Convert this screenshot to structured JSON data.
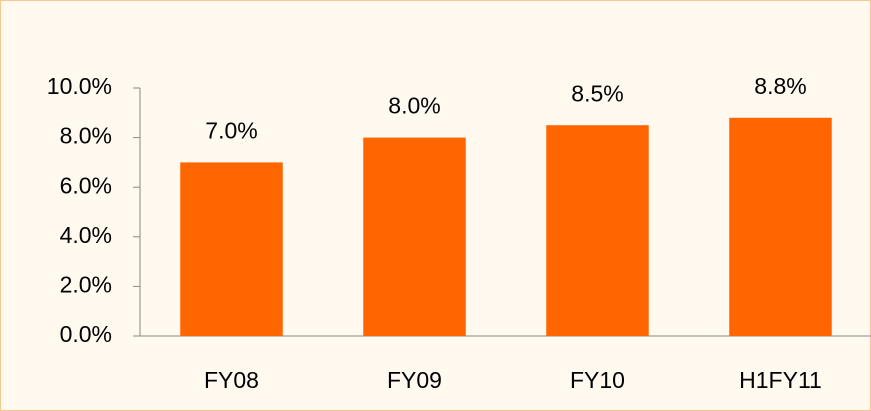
{
  "chart_data": {
    "type": "bar",
    "categories": [
      "FY08",
      "FY09",
      "FY10",
      "H1FY11"
    ],
    "values": [
      7.0,
      8.0,
      8.5,
      8.8
    ],
    "value_labels": [
      "7.0%",
      "8.0%",
      "8.5%",
      "8.8%"
    ],
    "color": "#ff6600",
    "ylim": [
      0,
      10
    ],
    "yticks": [
      {
        "value": 0,
        "label": "0.0%"
      },
      {
        "value": 2,
        "label": "2.0%"
      },
      {
        "value": 4,
        "label": "4.0%"
      },
      {
        "value": 6,
        "label": "6.0%"
      },
      {
        "value": 8,
        "label": "8.0%"
      },
      {
        "value": 10,
        "label": "10.0%"
      }
    ],
    "grid": false
  }
}
